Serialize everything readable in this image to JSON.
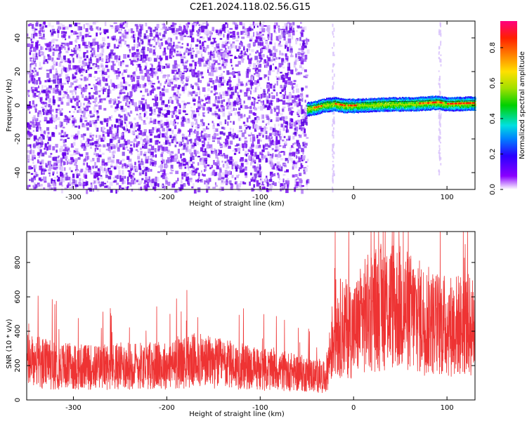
{
  "title": "C2E1.2024.118.02.56.G15",
  "colors": {
    "snr_line": "#ee3333",
    "scatter_purple": "#6a00ee",
    "frame": "#000000"
  },
  "chart_data": [
    {
      "type": "heatmap",
      "xlabel": "Height of straight line (km)",
      "ylabel": "Frequency (Hz)",
      "xlim": [
        -350,
        130
      ],
      "ylim": [
        -50,
        50
      ],
      "x_ticks": [
        -300,
        -200,
        -100,
        0,
        100
      ],
      "y_ticks": [
        -40,
        -20,
        0,
        20,
        40
      ],
      "colorbar": {
        "label": "Normalized spectral amplitude",
        "range": [
          0.0,
          0.95
        ],
        "ticks": [
          "0.0",
          "0.2",
          "0.4",
          "0.6",
          "0.8"
        ]
      },
      "noise_region_x": [
        -350,
        -50
      ],
      "signal_trace": {
        "x": [
          -50,
          -40,
          -30,
          -20,
          -10,
          0,
          20,
          40,
          60,
          80,
          90,
          100,
          130
        ],
        "frequency": [
          -2,
          -1,
          0.5,
          1,
          0,
          0,
          0.5,
          1,
          1,
          1.5,
          2,
          1,
          1.5
        ]
      },
      "grid": false
    },
    {
      "type": "line",
      "xlabel": "Height of straight line (km)",
      "ylabel": "SNR (10 * v/v)",
      "xlim": [
        -350,
        130
      ],
      "ylim": [
        0,
        980
      ],
      "x_ticks": [
        -300,
        -200,
        -100,
        0,
        100
      ],
      "y_ticks": [
        0,
        200,
        400,
        600,
        800
      ],
      "series": [
        {
          "x": [
            -350,
            -320,
            -280,
            -240,
            -200,
            -170,
            -140,
            -100,
            -60,
            -30,
            -20,
            -10,
            0,
            10,
            20,
            40,
            60,
            80,
            100,
            120,
            130
          ],
          "values": [
            230,
            200,
            190,
            200,
            200,
            230,
            210,
            180,
            160,
            130,
            420,
            420,
            400,
            480,
            520,
            560,
            510,
            460,
            430,
            440,
            420
          ]
        }
      ],
      "grid": false
    }
  ]
}
